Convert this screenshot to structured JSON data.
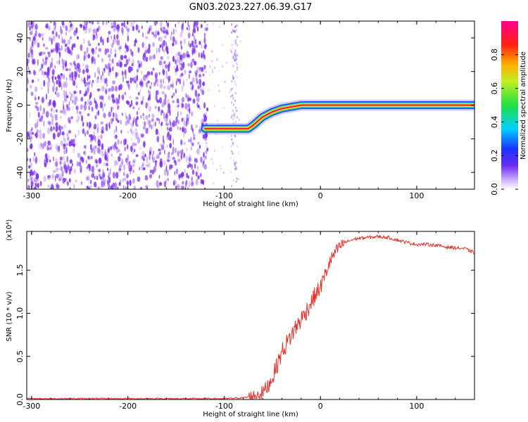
{
  "title": "GN03.2023.227.06.39.G17",
  "colors": {
    "snr_line": "#e8302a",
    "ridge_center": "#e8204a",
    "ridge_mid": "#f0e020",
    "ridge_outer": "#30d090",
    "ridge_edge": "#2040ff",
    "noise": "#7a2cf0"
  },
  "chart_data": [
    {
      "type": "heatmap",
      "xlabel": "Height of straight line (km)",
      "ylabel": "Frequency (Hz)",
      "xlim": [
        -305,
        160
      ],
      "ylim": [
        -50,
        50
      ],
      "xticks": [
        -300,
        -200,
        -100,
        0,
        100
      ],
      "yticks": [
        -40,
        -20,
        0,
        20,
        40
      ],
      "colorbar": {
        "label": "Normalized spectral amplitude",
        "range": [
          0,
          1
        ],
        "ticks": [
          0.0,
          0.2,
          0.4,
          0.6,
          0.8
        ],
        "tick_labels": [
          "0.0",
          "0.2",
          "0.4",
          "0.6",
          "0.8"
        ],
        "colormap": "rainbow (white → purple → blue → cyan → green → yellow → red → magenta)"
      },
      "ridge": {
        "x": [
          -120,
          -100,
          -85,
          -75,
          -70,
          -60,
          -50,
          -40,
          -30,
          -20,
          0,
          20,
          50,
          100,
          160
        ],
        "frequency": [
          -14,
          -14,
          -14,
          -14,
          -12,
          -7,
          -4,
          -2,
          -1,
          0,
          0,
          0,
          0,
          0,
          0
        ]
      },
      "noise_region": {
        "x_from": -305,
        "x_to": -120
      },
      "grid": false
    },
    {
      "type": "line",
      "xlabel": "Height of straight line (km)",
      "ylabel": "SNR (10 * v/v)",
      "y_scale_label": "(x10⁴)",
      "xlim": [
        -305,
        160
      ],
      "ylim": [
        0,
        1.95
      ],
      "xticks": [
        -300,
        -200,
        -100,
        0,
        100
      ],
      "yticks": [
        0.0,
        0.5,
        1.0,
        1.5
      ],
      "ytick_labels": [
        "0.0",
        "0.5",
        "1.0",
        "1.5"
      ],
      "series": [
        {
          "x": [
            -305,
            -250,
            -200,
            -150,
            -100,
            -80,
            -70,
            -60,
            -55,
            -50,
            -45,
            -40,
            -35,
            -30,
            -25,
            -20,
            -15,
            -10,
            -5,
            0,
            5,
            10,
            15,
            20,
            25,
            30,
            35,
            40,
            50,
            60,
            70,
            80,
            90,
            100,
            110,
            120,
            130,
            140,
            150,
            160
          ],
          "y": [
            0.01,
            0.01,
            0.01,
            0.01,
            0.01,
            0.02,
            0.04,
            0.08,
            0.15,
            0.25,
            0.4,
            0.55,
            0.65,
            0.75,
            0.85,
            0.93,
            1.02,
            1.12,
            1.22,
            1.3,
            1.45,
            1.6,
            1.7,
            1.77,
            1.82,
            1.84,
            1.86,
            1.87,
            1.88,
            1.89,
            1.88,
            1.85,
            1.82,
            1.8,
            1.8,
            1.79,
            1.77,
            1.76,
            1.75,
            1.7
          ]
        }
      ],
      "grid": false
    }
  ]
}
